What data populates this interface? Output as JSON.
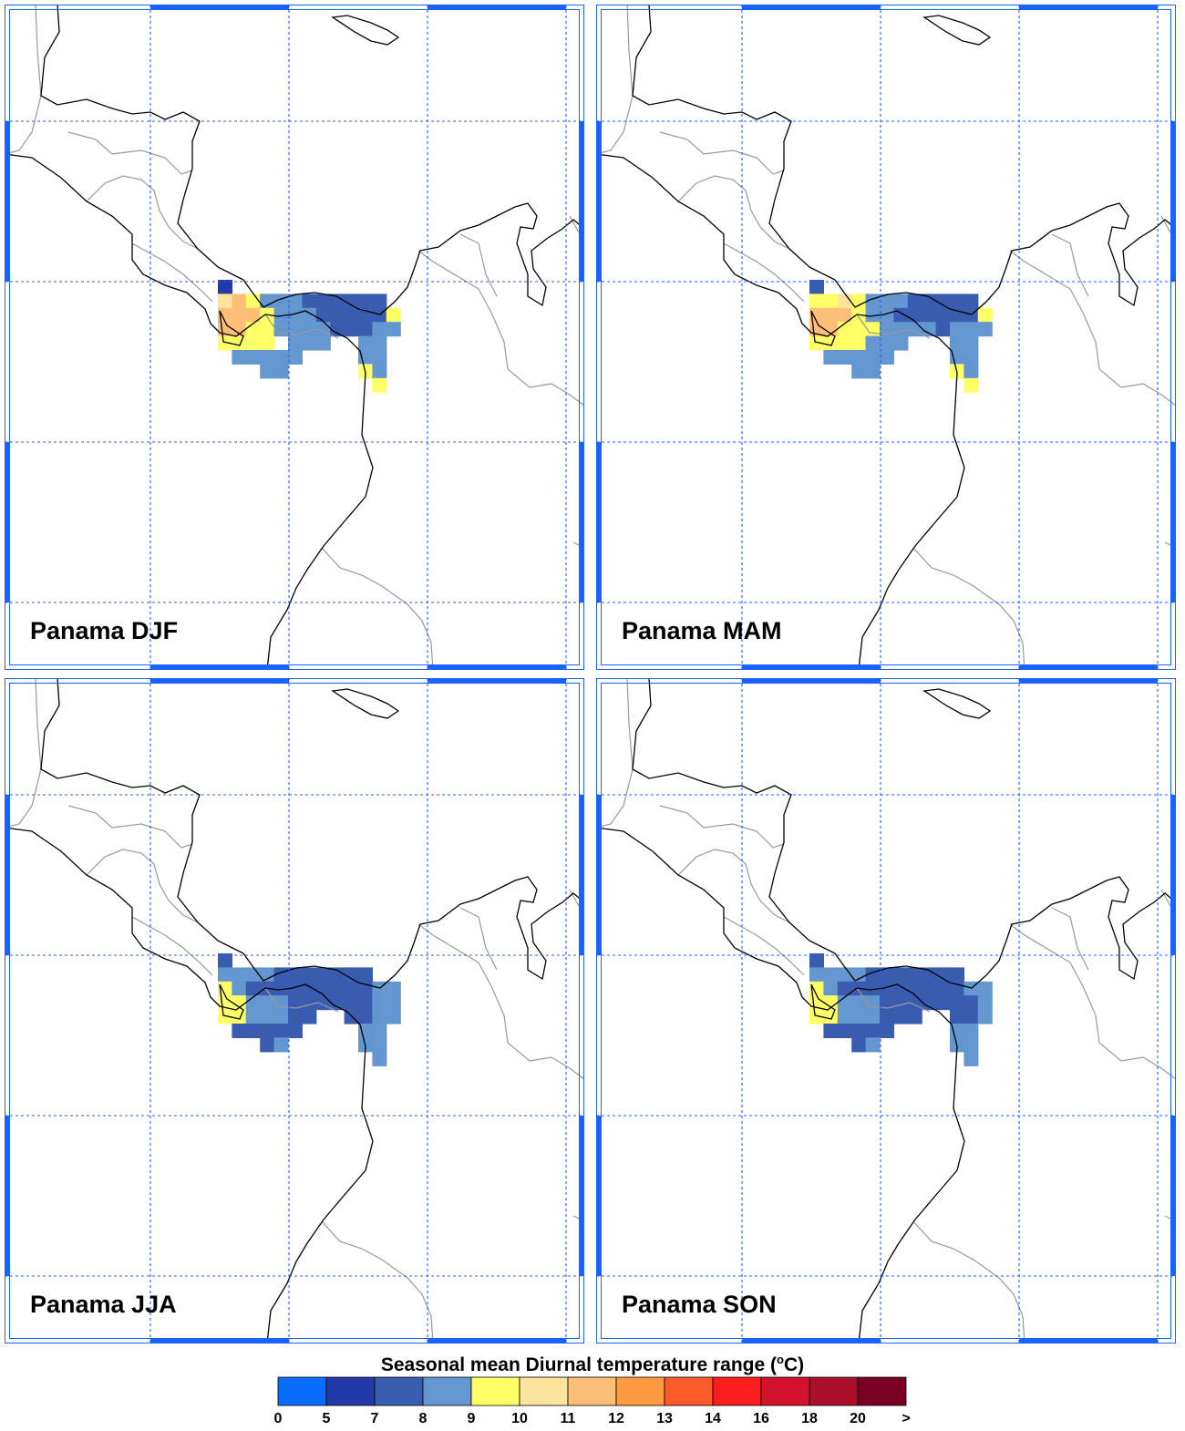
{
  "panels": [
    {
      "id": "djf",
      "title": "Panama DJF",
      "cells": [
        [
          0,
          0,
          5
        ],
        [
          0,
          1,
          10
        ],
        [
          1,
          1,
          11
        ],
        [
          2,
          1,
          9
        ],
        [
          3,
          1,
          8
        ],
        [
          4,
          1,
          8
        ],
        [
          5,
          1,
          8
        ],
        [
          6,
          1,
          7
        ],
        [
          7,
          1,
          7
        ],
        [
          8,
          1,
          7
        ],
        [
          9,
          1,
          7
        ],
        [
          10,
          1,
          7
        ],
        [
          11,
          1,
          7
        ],
        [
          0,
          2,
          11
        ],
        [
          1,
          2,
          11
        ],
        [
          2,
          2,
          11
        ],
        [
          3,
          2,
          9
        ],
        [
          4,
          2,
          8
        ],
        [
          5,
          2,
          8
        ],
        [
          6,
          2,
          8
        ],
        [
          7,
          2,
          7
        ],
        [
          8,
          2,
          7
        ],
        [
          9,
          2,
          7
        ],
        [
          10,
          2,
          7
        ],
        [
          11,
          2,
          7
        ],
        [
          12,
          2,
          9
        ],
        [
          0,
          3,
          11
        ],
        [
          1,
          3,
          11
        ],
        [
          2,
          3,
          9
        ],
        [
          3,
          3,
          9
        ],
        [
          4,
          3,
          8
        ],
        [
          5,
          3,
          8
        ],
        [
          6,
          3,
          8
        ],
        [
          7,
          3,
          8
        ],
        [
          8,
          3,
          7
        ],
        [
          9,
          3,
          7
        ],
        [
          10,
          3,
          7
        ],
        [
          11,
          3,
          8
        ],
        [
          12,
          3,
          8
        ],
        [
          0,
          4,
          9
        ],
        [
          1,
          4,
          9
        ],
        [
          2,
          4,
          9
        ],
        [
          3,
          4,
          9
        ],
        [
          5,
          4,
          8
        ],
        [
          6,
          4,
          8
        ],
        [
          7,
          4,
          8
        ],
        [
          10,
          4,
          8
        ],
        [
          11,
          4,
          8
        ],
        [
          1,
          5,
          8
        ],
        [
          2,
          5,
          8
        ],
        [
          3,
          5,
          8
        ],
        [
          4,
          5,
          8
        ],
        [
          5,
          5,
          8
        ],
        [
          10,
          5,
          8
        ],
        [
          11,
          5,
          8
        ],
        [
          3,
          6,
          8
        ],
        [
          4,
          6,
          8
        ],
        [
          10,
          6,
          9
        ],
        [
          11,
          6,
          8
        ],
        [
          11,
          7,
          9
        ]
      ]
    },
    {
      "id": "mam",
      "title": "Panama MAM",
      "cells": [
        [
          0,
          0,
          7
        ],
        [
          0,
          1,
          9
        ],
        [
          1,
          1,
          9
        ],
        [
          2,
          1,
          10
        ],
        [
          3,
          1,
          9
        ],
        [
          4,
          1,
          8
        ],
        [
          5,
          1,
          8
        ],
        [
          6,
          1,
          8
        ],
        [
          7,
          1,
          7
        ],
        [
          8,
          1,
          7
        ],
        [
          9,
          1,
          7
        ],
        [
          10,
          1,
          7
        ],
        [
          11,
          1,
          7
        ],
        [
          0,
          2,
          11
        ],
        [
          1,
          2,
          11
        ],
        [
          2,
          2,
          11
        ],
        [
          3,
          2,
          9
        ],
        [
          4,
          2,
          8
        ],
        [
          5,
          2,
          8
        ],
        [
          6,
          2,
          7
        ],
        [
          7,
          2,
          7
        ],
        [
          8,
          2,
          7
        ],
        [
          9,
          2,
          7
        ],
        [
          10,
          2,
          7
        ],
        [
          11,
          2,
          7
        ],
        [
          12,
          2,
          9
        ],
        [
          0,
          3,
          11
        ],
        [
          1,
          3,
          11
        ],
        [
          2,
          3,
          9
        ],
        [
          3,
          3,
          9
        ],
        [
          4,
          3,
          9
        ],
        [
          5,
          3,
          8
        ],
        [
          6,
          3,
          8
        ],
        [
          7,
          3,
          8
        ],
        [
          8,
          3,
          8
        ],
        [
          9,
          3,
          7
        ],
        [
          10,
          3,
          8
        ],
        [
          11,
          3,
          8
        ],
        [
          12,
          3,
          8
        ],
        [
          0,
          4,
          9
        ],
        [
          1,
          4,
          9
        ],
        [
          2,
          4,
          9
        ],
        [
          3,
          4,
          9
        ],
        [
          4,
          4,
          8
        ],
        [
          5,
          4,
          8
        ],
        [
          6,
          4,
          8
        ],
        [
          10,
          4,
          8
        ],
        [
          11,
          4,
          8
        ],
        [
          1,
          5,
          8
        ],
        [
          2,
          5,
          8
        ],
        [
          3,
          5,
          8
        ],
        [
          4,
          5,
          8
        ],
        [
          5,
          5,
          8
        ],
        [
          10,
          5,
          8
        ],
        [
          11,
          5,
          8
        ],
        [
          3,
          6,
          8
        ],
        [
          4,
          6,
          8
        ],
        [
          10,
          6,
          9
        ],
        [
          11,
          6,
          8
        ],
        [
          11,
          7,
          9
        ]
      ]
    },
    {
      "id": "jja",
      "title": "Panama JJA",
      "cells": [
        [
          0,
          0,
          7
        ],
        [
          0,
          1,
          8
        ],
        [
          1,
          1,
          8
        ],
        [
          2,
          1,
          8
        ],
        [
          3,
          1,
          8
        ],
        [
          4,
          1,
          7
        ],
        [
          5,
          1,
          7
        ],
        [
          6,
          1,
          7
        ],
        [
          7,
          1,
          7
        ],
        [
          8,
          1,
          7
        ],
        [
          9,
          1,
          7
        ],
        [
          10,
          1,
          7
        ],
        [
          0,
          2,
          9
        ],
        [
          1,
          2,
          8
        ],
        [
          2,
          2,
          7
        ],
        [
          3,
          2,
          7
        ],
        [
          4,
          2,
          7
        ],
        [
          5,
          2,
          7
        ],
        [
          6,
          2,
          7
        ],
        [
          7,
          2,
          7
        ],
        [
          8,
          2,
          7
        ],
        [
          9,
          2,
          7
        ],
        [
          10,
          2,
          7
        ],
        [
          11,
          2,
          8
        ],
        [
          12,
          2,
          8
        ],
        [
          0,
          3,
          9
        ],
        [
          1,
          3,
          9
        ],
        [
          2,
          3,
          8
        ],
        [
          3,
          3,
          8
        ],
        [
          4,
          3,
          8
        ],
        [
          5,
          3,
          7
        ],
        [
          6,
          3,
          7
        ],
        [
          7,
          3,
          7
        ],
        [
          8,
          3,
          7
        ],
        [
          9,
          3,
          7
        ],
        [
          10,
          3,
          7
        ],
        [
          11,
          3,
          8
        ],
        [
          12,
          3,
          8
        ],
        [
          0,
          4,
          9
        ],
        [
          1,
          4,
          9
        ],
        [
          2,
          4,
          8
        ],
        [
          3,
          4,
          8
        ],
        [
          4,
          4,
          8
        ],
        [
          5,
          4,
          7
        ],
        [
          6,
          4,
          7
        ],
        [
          9,
          4,
          7
        ],
        [
          10,
          4,
          7
        ],
        [
          11,
          4,
          8
        ],
        [
          12,
          4,
          8
        ],
        [
          1,
          5,
          7
        ],
        [
          2,
          5,
          7
        ],
        [
          3,
          5,
          7
        ],
        [
          4,
          5,
          7
        ],
        [
          5,
          5,
          7
        ],
        [
          10,
          5,
          8
        ],
        [
          11,
          5,
          8
        ],
        [
          3,
          6,
          7
        ],
        [
          4,
          6,
          8
        ],
        [
          10,
          6,
          8
        ],
        [
          11,
          6,
          8
        ],
        [
          11,
          7,
          8
        ]
      ]
    },
    {
      "id": "son",
      "title": "Panama SON",
      "cells": [
        [
          0,
          0,
          7
        ],
        [
          0,
          1,
          8
        ],
        [
          1,
          1,
          8
        ],
        [
          2,
          1,
          8
        ],
        [
          3,
          1,
          8
        ],
        [
          4,
          1,
          7
        ],
        [
          5,
          1,
          7
        ],
        [
          6,
          1,
          7
        ],
        [
          7,
          1,
          7
        ],
        [
          8,
          1,
          7
        ],
        [
          9,
          1,
          7
        ],
        [
          10,
          1,
          7
        ],
        [
          0,
          2,
          9
        ],
        [
          1,
          2,
          8
        ],
        [
          2,
          2,
          7
        ],
        [
          3,
          2,
          7
        ],
        [
          4,
          2,
          7
        ],
        [
          5,
          2,
          7
        ],
        [
          6,
          2,
          7
        ],
        [
          7,
          2,
          7
        ],
        [
          8,
          2,
          7
        ],
        [
          9,
          2,
          7
        ],
        [
          10,
          2,
          7
        ],
        [
          11,
          2,
          8
        ],
        [
          12,
          2,
          8
        ],
        [
          0,
          3,
          9
        ],
        [
          1,
          3,
          9
        ],
        [
          2,
          3,
          8
        ],
        [
          3,
          3,
          8
        ],
        [
          4,
          3,
          8
        ],
        [
          5,
          3,
          7
        ],
        [
          6,
          3,
          7
        ],
        [
          7,
          3,
          7
        ],
        [
          8,
          3,
          7
        ],
        [
          9,
          3,
          7
        ],
        [
          10,
          3,
          7
        ],
        [
          11,
          3,
          7
        ],
        [
          12,
          3,
          8
        ],
        [
          0,
          4,
          9
        ],
        [
          1,
          4,
          9
        ],
        [
          2,
          4,
          8
        ],
        [
          3,
          4,
          8
        ],
        [
          4,
          4,
          8
        ],
        [
          5,
          4,
          7
        ],
        [
          6,
          4,
          7
        ],
        [
          7,
          4,
          7
        ],
        [
          10,
          4,
          7
        ],
        [
          11,
          4,
          7
        ],
        [
          12,
          4,
          8
        ],
        [
          1,
          5,
          7
        ],
        [
          2,
          5,
          7
        ],
        [
          3,
          5,
          7
        ],
        [
          4,
          5,
          7
        ],
        [
          5,
          5,
          7
        ],
        [
          10,
          5,
          8
        ],
        [
          11,
          5,
          8
        ],
        [
          3,
          6,
          7
        ],
        [
          4,
          6,
          8
        ],
        [
          10,
          6,
          8
        ],
        [
          11,
          6,
          8
        ],
        [
          11,
          7,
          8
        ]
      ]
    }
  ],
  "legend": {
    "title": "Seasonal mean Diurnal temperature range (",
    "unit_sup": "o",
    "unit_tail": "C)",
    "ticks": [
      "0",
      "5",
      "7",
      "8",
      "9",
      "10",
      "11",
      "12",
      "13",
      "14",
      "16",
      "18",
      "20",
      ">"
    ],
    "colors": [
      "#0a6cff",
      "#2239a8",
      "#3a5cb0",
      "#6496cf",
      "#ffff66",
      "#fde49c",
      "#fdbf78",
      "#fe9a40",
      "#fe5b2d",
      "#fb1d1d",
      "#d3122c",
      "#aa0e28",
      "#780022"
    ]
  },
  "colors": {
    "frame": "#1a62ff",
    "grid": "#2060ff",
    "coast": "#000000",
    "border": "#999999"
  }
}
